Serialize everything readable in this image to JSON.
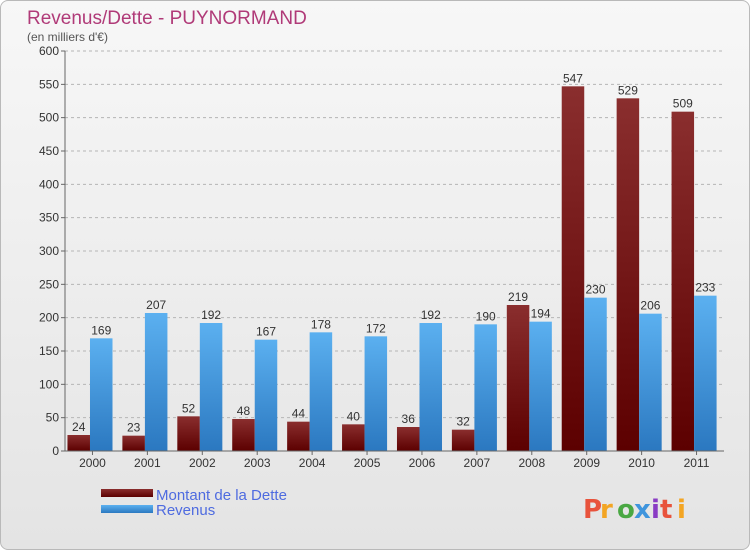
{
  "chart_data": {
    "type": "bar",
    "title": "Revenus/Dette - PUYNORMAND",
    "subtitle": "(en milliers d'€)",
    "categories": [
      "2000",
      "2001",
      "2002",
      "2003",
      "2004",
      "2005",
      "2006",
      "2007",
      "2008",
      "2009",
      "2010",
      "2011"
    ],
    "series": [
      {
        "name": "Montant de la Dette",
        "color": "#7a1a1a",
        "values": [
          24,
          23,
          52,
          48,
          44,
          40,
          36,
          32,
          219,
          547,
          529,
          509
        ]
      },
      {
        "name": "Revenus",
        "color": "#3f95dd",
        "values": [
          169,
          207,
          192,
          167,
          178,
          172,
          192,
          190,
          194,
          230,
          206,
          233
        ]
      }
    ],
    "ylim": [
      0,
      600
    ],
    "yticks": [
      0,
      50,
      100,
      150,
      200,
      250,
      300,
      350,
      400,
      450,
      500,
      550,
      600
    ],
    "grid": true,
    "legend": "bottom-left"
  },
  "branding": {
    "logo_text": "Proxiti",
    "colors": [
      "#e8533c",
      "#f3a523",
      "#4aa843",
      "#3f95dd",
      "#8a3cc4",
      "#e8533c",
      "#f3a523"
    ]
  }
}
